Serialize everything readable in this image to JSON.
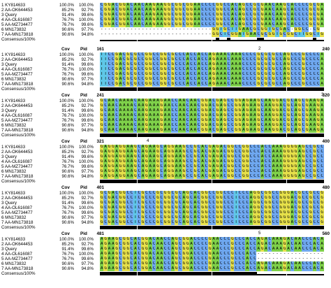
{
  "blocks": [
    {
      "cov_label": "",
      "pid_label": "",
      "start": "",
      "end": "",
      "marks": [],
      "rows": [
        {
          "name": "1 KY814633",
          "cov": "100.0%",
          "pid": "100.0%",
          "seq": "CGGACGGACAACAAGAAGGCGGCGGAACCCCGGCCACAGCCGCGAACAAGCACCCCGCGA"
        },
        {
          "name": "2 AA-OK644453",
          "cov": "85.2%",
          "pid": "92.7%",
          "seq": "CGGACGGACAACAAGAAGGCGGCGGAACCCCGGCCACAGCCGCGAACAAGCACCCCGCGA"
        },
        {
          "name": "3 Query",
          "cov": "91.4%",
          "pid": "99.6%",
          "seq": "CGGACGGACAACAAGAAGGCGGCGGAACCCCGGCCACAGCCGCGAACAAGCACCCCGCGA"
        },
        {
          "name": "4 AA-OL616087",
          "cov": "76.7%",
          "pid": "100.0%",
          "seq": "CGGACGGACAACAAGAAGGCGGCGGAACCCCGGCCACAGCCGCGAACAAGCACCCCGCGA"
        },
        {
          "name": "5 AA-MZ734477",
          "cov": "76.7%",
          "pid": "99.6%",
          "seq": "CGGACGGACAACAAGAAGGCGGCGGAACCCCGGCCACAGCCGCGAACAAGCACCCCGCGA"
        },
        {
          "name": "6 MN173832",
          "cov": "90.6%",
          "pid": "97.7%",
          "seq": "------------------------------GGTGCTTGAACGCGGTGCGAC-GGCC-CG"
        },
        {
          "name": "7 AA-MN173818",
          "cov": "90.6%",
          "pid": "94.8%",
          "seq": "------------------------------GGCTCGGATGAACGCGGTGCGGCTTGGCTG"
        }
      ],
      "consensus": "Consensus/100%"
    },
    {
      "cov_label": "Cov",
      "pid_label": "Pid",
      "start": "161",
      "end": "240",
      "marks": [
        "2"
      ],
      "rows": [
        {
          "name": "1 KY814633",
          "cov": "100.0%",
          "pid": "100.0%",
          "seq": "TTCCGACGCGCCGGCCGGCGCCCACCACCAGAAACAAACCCCGCGCGCCAGCCCGCCCCA"
        },
        {
          "name": "2 AA-OK644453",
          "cov": "85.2%",
          "pid": "92.7%",
          "seq": "TTCCGACGCGCCGGCCGGCGCCCACCACCAGAAACAAACCCCGCGCGCCAGCCCGCCCCA"
        },
        {
          "name": "3 Query",
          "cov": "91.4%",
          "pid": "99.6%",
          "seq": "TTCCGACGCGCCGGCCGGCGCCCACCACCAGAAACAAACCCCGCGCGCCAGCCCGCCCCA"
        },
        {
          "name": "4 AA-OL616087",
          "cov": "76.7%",
          "pid": "100.0%",
          "seq": "TTCCGACGCGCCGGCCGGCGCCCACCACCAGAAACAAACCCCGCGCGCCAGCCCGCCCCA"
        },
        {
          "name": "5 AA-MZ734477",
          "cov": "76.7%",
          "pid": "99.6%",
          "seq": "TTCCGACGCGCCGGCCGGCGCCCACCACCAGAAACAAACCCCGCGCGCCAGCCCGCCCCA"
        },
        {
          "name": "6 MN173832",
          "cov": "90.6%",
          "pid": "97.7%",
          "seq": "TTCCGACGCGCCGGCCGGCGCCCACCACCAGAAACAAACCCCGCGCGCCAGCCCGCCCCA"
        },
        {
          "name": "7 AA-MN173818",
          "cov": "90.6%",
          "pid": "94.8%",
          "seq": "TTCCGACGCGCCGGCCGGCGCCCACCACCAGAAACAAACCCCGCGCGCCAGCCCGCCCCA"
        }
      ],
      "consensus": "Consensus/100%"
    },
    {
      "cov_label": "Cov",
      "pid_label": "Pid",
      "start": "241",
      "end": "320",
      "marks": [
        "3"
      ],
      "rows": [
        {
          "name": "1 KY814633",
          "cov": "100.0%",
          "pid": "100.0%",
          "seq": "GCAACAAAACAAGAAAGAACCAACAACGGACGAGCCGGAGAAGCAAGGACGCAGCGAAGA"
        },
        {
          "name": "2 AA-OK644453",
          "cov": "85.2%",
          "pid": "92.7%",
          "seq": "GCAACAAAACAAGAAAGAACCAACAACGGACGAGCCGGAGAAGCAAGGACGCAGCGAAGA"
        },
        {
          "name": "3 Query",
          "cov": "91.4%",
          "pid": "99.6%",
          "seq": "GCAACAAAACAAGAAAGAACCAACAACGGACGAGCCGGAGAAGCAAGGACGCAGCGAAGA"
        },
        {
          "name": "4 AA-OL616087",
          "cov": "76.7%",
          "pid": "100.0%",
          "seq": "GCAACAAAACAAGAAAGAACCAACAACGGACGAGCCGGAGAAGCAAGGACGCAGCGAAGA"
        },
        {
          "name": "5 AA-MZ734477",
          "cov": "76.7%",
          "pid": "99.6%",
          "seq": "GCAACAAAACAAGAAAGAACCAACAACGGACGAGCCGGAGAAGCAAGGACGCAGCGAAGA"
        },
        {
          "name": "6 MN173832",
          "cov": "90.6%",
          "pid": "97.7%",
          "seq": "GCAACAAAACAAGAAAGAACCAACAACGGACGAGCCGGAGAAGCAAGGACGCAGCGAAGA"
        },
        {
          "name": "7 AA-MN173818",
          "cov": "90.6%",
          "pid": "94.8%",
          "seq": "GCAACAAAACAAGAAAGAACCAACAACGGACGAGCCGGAGAAGCAAGGACGCAGCGAAGA"
        }
      ],
      "consensus": "Consensus/100%"
    },
    {
      "cov_label": "Cov",
      "pid_label": "Pid",
      "start": "321",
      "end": "400",
      "marks": [
        "4"
      ],
      "rows": [
        {
          "name": "1 KY814633",
          "cov": "100.0%",
          "pid": "100.0%",
          "seq": "GAGGAGGAAGCAGAAGCAGGAAGCCGCACGAGACGGCCGGCCCACCAAAGGGGAGCCGCC"
        },
        {
          "name": "2 AA-OK644453",
          "cov": "85.2%",
          "pid": "92.7%",
          "seq": "GAGGAGGAAGCAGAAGCAGGAAGCCGCACGAGACGGCCGGCCCACCAAAGGGGAGCCGCC"
        },
        {
          "name": "3 Query",
          "cov": "91.4%",
          "pid": "99.6%",
          "seq": "GAGGAGGAAGCAGAAGCAGGAAGCCGCACGAGACGGCCGGCCCACCAAAGGGGAGCCGCC"
        },
        {
          "name": "4 AA-OL616087",
          "cov": "76.7%",
          "pid": "100.0%",
          "seq": "GAGGAGGAAGCAGAAGCAGGAAGCCGCACGAGACGGCCGGCCCACCAAAGGGGAGCCGCC"
        },
        {
          "name": "5 AA-MZ734477",
          "cov": "76.7%",
          "pid": "99.6%",
          "seq": "GAGGAGGAAGCAGAAGCAGGAAGCCGCACGAGACGGCCGGCCCACCAAAGGGGAGCCGCC"
        },
        {
          "name": "6 MN173832",
          "cov": "90.6%",
          "pid": "97.7%",
          "seq": "GAGGAGGAAGCAGAAGCAGGAAGCCGCACGAGACGGCCGGCCCACCAAAGGGGAGCCGCC"
        },
        {
          "name": "7 AA-MN173818",
          "cov": "90.6%",
          "pid": "94.8%",
          "seq": "GAGGAGGAAGCAGAAGCAGGAAGCCGCACGAGACGGCCGGCCCACCAAAGGGGAGCCGCC"
        }
      ],
      "consensus": "Consensus/100%"
    },
    {
      "cov_label": "Cov",
      "pid_label": "Pid",
      "start": "401",
      "end": "480",
      "marks": [],
      "rows": [
        {
          "name": "1 KY814633",
          "cov": "100.0%",
          "pid": "100.0%",
          "seq": "GCGACGGCCTCGCCCGCGGCGCAGCACGGCCGGCCCTCCCAGGCGGCCGGGACGCCGCCG"
        },
        {
          "name": "2 AA-OK644453",
          "cov": "85.2%",
          "pid": "92.7%",
          "seq": "GCGACGGCCTCGCCCGCGGCGCAGCACGGCCGGCCCTCCCAGGCGGCCGGGACGCCGCCG"
        },
        {
          "name": "3 Query",
          "cov": "91.4%",
          "pid": "99.6%",
          "seq": "GCGACGGCCTCGCCCGCGGCGCAGCACGGCCGGCCCTCCCAGGCGGCCGGGACGCCGCCG"
        },
        {
          "name": "4 AA-OL616087",
          "cov": "76.7%",
          "pid": "100.0%",
          "seq": "GCGACGGCCTCGCCCGCGGCGCAGCACGGCCGGCCCTCCCAGGCGGCCGGGACGCCGCCG"
        },
        {
          "name": "5 AA-MZ734477",
          "cov": "76.7%",
          "pid": "99.6%",
          "seq": "GCGACGGCCTCGCCCGCGGCGCAGCACGGCCGGCCCTCCCAGGCGGCCGGGACGCCGCCG"
        },
        {
          "name": "6 MN173832",
          "cov": "90.6%",
          "pid": "97.7%",
          "seq": "GCGACGGCCTCGCCCGCGGCGCAGCACGGCCGGCCCTCCCAGGCGGCCGGGACGCCGCCG"
        },
        {
          "name": "7 AA-MN173818",
          "cov": "90.6%",
          "pid": "94.8%",
          "seq": "GCGACGGCCTCGCCCGCGGCGCAGCACGGCCGGCCCTCCCAGGCGGCCGGGACGCCGCCG"
        }
      ],
      "consensus": "Consensus/100%"
    },
    {
      "cov_label": "Cov",
      "pid_label": "Pid",
      "start": "481",
      "end": "560",
      "marks": [
        "5"
      ],
      "rows": [
        {
          "name": "1 KY814633",
          "cov": "100.0%",
          "pid": "100.0%",
          "seq": "AGAAGCGGCACGGACAACCAGCGGACCCCGAACCCGCCCACCAGACAAAGACAACCCACA"
        },
        {
          "name": "2 AA-OK644453",
          "cov": "85.2%",
          "pid": "92.7%",
          "seq": "AGAAGCGGCACGGACAACCAGCGGACCCCGAACCCGCCCACCAGACAAAGACAACCCACA"
        },
        {
          "name": "3 Query",
          "cov": "91.4%",
          "pid": "99.6%",
          "seq": "AGAAGCGGCACGGACAACCAGCGGACCCCGAACCCGCCCACCAGACAAAGACAACCCACA"
        },
        {
          "name": "4 AA-OL616087",
          "cov": "76.7%",
          "pid": "100.0%",
          "seq": "AGAAGCGGCACGGACAACCAGCGGACCCCGAACCCGCCCACC------------------"
        },
        {
          "name": "5 AA-MZ734477",
          "cov": "76.7%",
          "pid": "99.6%",
          "seq": "AGAAGCGGCACGGACAACCAGCGGACCCCGAACCCGCCCACC------------------"
        },
        {
          "name": "6 MN173832",
          "cov": "90.6%",
          "pid": "97.7%",
          "seq": "AGAAGCGGCACGGACAACCAGCGGACCCCGAACCCGCCCACCAGACAAAGACAACCCACA"
        },
        {
          "name": "7 AA-MN173818",
          "cov": "90.6%",
          "pid": "94.8%",
          "seq": "AGAAGCGGCACGGACAACCAGCGGACCCCGAACCCGCCCACCAGACAAAGACAACCCACA"
        }
      ],
      "consensus": "Consensus/100%"
    }
  ],
  "colors": {
    "A": "#7fd14a",
    "C": "#6fa8f0",
    "G": "#e6e04a",
    "T": "#5fc8e8",
    "consensus_bar": "#000000"
  }
}
